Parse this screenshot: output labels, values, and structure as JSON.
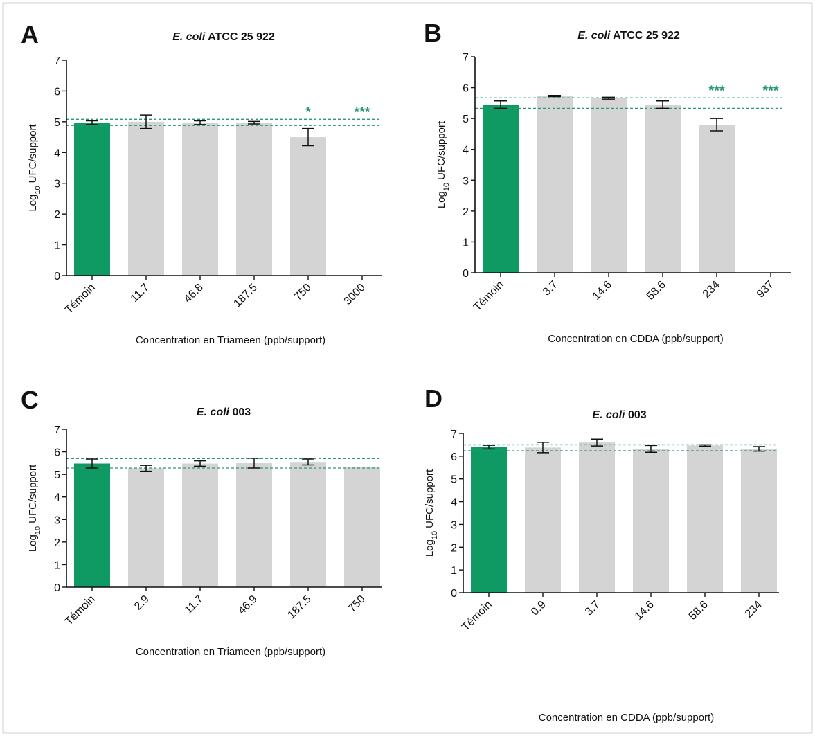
{
  "chart_data": [
    {
      "type": "bar",
      "panel": "A",
      "title": {
        "species": "E. coli",
        "strain": "ATCC 25 922"
      },
      "ylabel": {
        "text": "Log",
        "subscript": "10",
        "rest": "UFC/support"
      },
      "xlabel": "Concentration en Triameen (ppb/support)",
      "categories": [
        "Témoin",
        "11.7",
        "46.8",
        "187.5",
        "750",
        "3000"
      ],
      "values": [
        4.97,
        5.0,
        4.97,
        4.97,
        4.5,
        0
      ],
      "errors": [
        0.06,
        0.22,
        0.06,
        0.04,
        0.28,
        null
      ],
      "colors": [
        "#0f9a63",
        "#d4d4d4",
        "#d4d4d4",
        "#d4d4d4",
        "#d4d4d4",
        "#d4d4d4"
      ],
      "significance": [
        null,
        null,
        null,
        null,
        "*",
        "***"
      ],
      "reference_lines": [
        5.08,
        4.88
      ],
      "reference_color": "#2a9a70",
      "ylim": [
        0,
        7
      ],
      "yticks": [
        0,
        1,
        2,
        3,
        4,
        5,
        6,
        7
      ]
    },
    {
      "type": "bar",
      "panel": "B",
      "title": {
        "species": "E. coli",
        "strain": "ATCC 25 922"
      },
      "ylabel": {
        "text": "Log",
        "subscript": "10",
        "rest": "UFC/support"
      },
      "xlabel": "Concentration en CDDA (ppb/support)",
      "categories": [
        "Témoin",
        "3.7",
        "14.6",
        "58.6",
        "234",
        "937"
      ],
      "values": [
        5.45,
        5.73,
        5.66,
        5.45,
        4.8,
        0
      ],
      "errors": [
        0.12,
        0.02,
        0.03,
        0.12,
        0.2,
        null
      ],
      "colors": [
        "#0f9a63",
        "#d4d4d4",
        "#d4d4d4",
        "#d4d4d4",
        "#d4d4d4",
        "#d4d4d4"
      ],
      "significance": [
        null,
        null,
        null,
        null,
        "***",
        "***"
      ],
      "reference_lines": [
        5.67,
        5.33
      ],
      "reference_color": "#2a9a70",
      "ylim": [
        0,
        7
      ],
      "yticks": [
        0,
        1,
        2,
        3,
        4,
        5,
        6,
        7
      ]
    },
    {
      "type": "bar",
      "panel": "C",
      "title": {
        "species": "E. coli",
        "strain": "003"
      },
      "ylabel": {
        "text": "Log",
        "subscript": "10",
        "rest": "UFC/support"
      },
      "xlabel": "Concentration en Triameen (ppb/support)",
      "categories": [
        "Témoin",
        "2.9",
        "11.7",
        "46.9",
        "187.5",
        "750"
      ],
      "values": [
        5.48,
        5.27,
        5.48,
        5.5,
        5.55,
        5.33
      ],
      "errors": [
        0.2,
        0.13,
        0.12,
        0.22,
        0.13,
        null
      ],
      "colors": [
        "#0f9a63",
        "#d4d4d4",
        "#d4d4d4",
        "#d4d4d4",
        "#d4d4d4",
        "#d4d4d4"
      ],
      "reference_lines": [
        5.7,
        5.28
      ],
      "reference_color": "#2a9a70",
      "ylim": [
        0,
        7
      ],
      "yticks": [
        0,
        1,
        2,
        3,
        4,
        5,
        6,
        7
      ]
    },
    {
      "type": "bar",
      "panel": "D",
      "title": {
        "species": "E. coli",
        "strain": "003"
      },
      "ylabel": {
        "text": "Log",
        "subscript": "10",
        "rest": "UFC/support"
      },
      "xlabel": "Concentration en CDDA (ppb/support)",
      "categories": [
        "Témoin",
        "0.9",
        "3.7",
        "14.6",
        "58.6",
        "234"
      ],
      "values": [
        6.4,
        6.38,
        6.6,
        6.32,
        6.47,
        6.32
      ],
      "errors": [
        0.08,
        0.23,
        0.15,
        0.15,
        0.03,
        0.1
      ],
      "colors": [
        "#0f9a63",
        "#d4d4d4",
        "#d4d4d4",
        "#d4d4d4",
        "#d4d4d4",
        "#d4d4d4"
      ],
      "reference_lines": [
        6.5,
        6.24
      ],
      "reference_color": "#2a9a70",
      "ylim": [
        0,
        7
      ],
      "yticks": [
        0,
        1,
        2,
        3,
        4,
        5,
        6,
        7
      ]
    }
  ]
}
